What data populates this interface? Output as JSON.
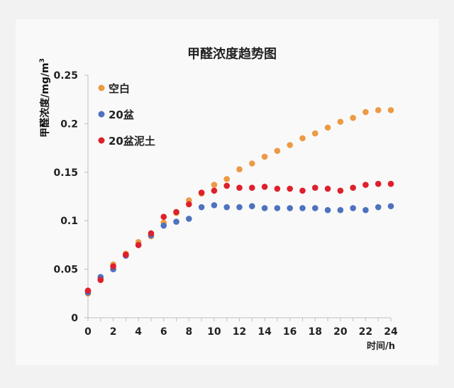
{
  "chart_data": {
    "type": "scatter",
    "title": "甲醛浓度趋势图",
    "xlabel": "时间/h",
    "ylabel": "甲醛浓度/mg/m3",
    "xlim": [
      0,
      24
    ],
    "ylim": [
      0,
      0.25
    ],
    "x_ticks": [
      "0",
      "2",
      "4",
      "6",
      "8",
      "10",
      "12",
      "14",
      "16",
      "18",
      "20",
      "22",
      "24"
    ],
    "y_ticks": [
      "0",
      "0.05",
      "0.1",
      "0.15",
      "0.2",
      "0.25"
    ],
    "grid": false,
    "legend_position": "top-left",
    "trendlines": "smooth",
    "series": [
      {
        "name": "空白",
        "color": "#ed9a45",
        "trend_color": "#f6c979",
        "x": [
          0,
          1,
          2,
          3,
          4,
          5,
          6,
          7,
          8,
          9,
          10,
          11,
          12,
          13,
          14,
          15,
          16,
          17,
          18,
          19,
          20,
          21,
          22,
          23,
          24
        ],
        "y": [
          0.025,
          0.04,
          0.055,
          0.066,
          0.078,
          0.084,
          0.098,
          0.108,
          0.121,
          0.128,
          0.137,
          0.143,
          0.153,
          0.159,
          0.166,
          0.172,
          0.178,
          0.185,
          0.19,
          0.196,
          0.202,
          0.206,
          0.212,
          0.214,
          0.214
        ]
      },
      {
        "name": "20盆",
        "color": "#4d72be",
        "trend_color": "#9cb0dd",
        "x": [
          0,
          1,
          2,
          3,
          4,
          5,
          6,
          7,
          8,
          9,
          10,
          11,
          12,
          13,
          14,
          15,
          16,
          17,
          18,
          19,
          20,
          21,
          22,
          23,
          24
        ],
        "y": [
          0.026,
          0.042,
          0.05,
          0.064,
          0.075,
          0.085,
          0.095,
          0.099,
          0.102,
          0.114,
          0.116,
          0.114,
          0.114,
          0.115,
          0.113,
          0.113,
          0.113,
          0.113,
          0.113,
          0.111,
          0.111,
          0.113,
          0.111,
          0.114,
          0.115
        ]
      },
      {
        "name": "20盆泥土",
        "color": "#de202c",
        "trend_color": "#ee7f86",
        "x": [
          0,
          1,
          2,
          3,
          4,
          5,
          6,
          7,
          8,
          9,
          10,
          11,
          12,
          13,
          14,
          15,
          16,
          17,
          18,
          19,
          20,
          21,
          22,
          23,
          24
        ],
        "y": [
          0.028,
          0.039,
          0.053,
          0.065,
          0.075,
          0.087,
          0.104,
          0.109,
          0.117,
          0.129,
          0.131,
          0.136,
          0.134,
          0.134,
          0.135,
          0.133,
          0.133,
          0.131,
          0.134,
          0.133,
          0.131,
          0.134,
          0.137,
          0.138,
          0.138
        ]
      }
    ]
  }
}
